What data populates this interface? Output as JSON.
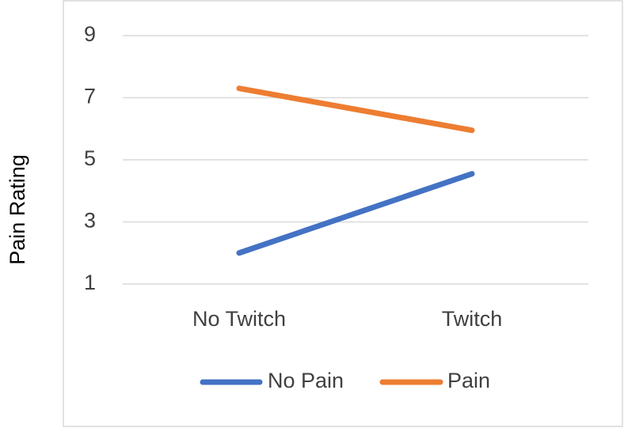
{
  "chart_data": {
    "type": "line",
    "title": "",
    "xlabel": "",
    "ylabel": "Pain Rating",
    "categories": [
      "No Twitch",
      "Twitch"
    ],
    "yticks": [
      "1",
      "3",
      "5",
      "7",
      "9"
    ],
    "ylim": [
      1,
      9
    ],
    "grid": true,
    "legend_position": "bottom",
    "series": [
      {
        "name": "No Pain",
        "values": [
          2.0,
          4.55
        ],
        "color": "#4472c4"
      },
      {
        "name": "Pain",
        "values": [
          7.3,
          5.95
        ],
        "color": "#ed7d31"
      }
    ]
  }
}
